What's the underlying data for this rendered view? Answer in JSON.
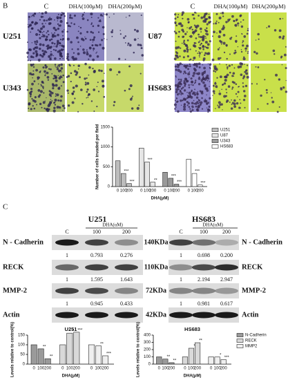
{
  "panel_b": {
    "label": "B",
    "columns_left": [
      "C",
      "DHA(100μM)",
      "DHA(200μM)"
    ],
    "columns_right": [
      "C",
      "DHA(100μM)",
      "DHA(200μM)"
    ],
    "rows_left": [
      "U251",
      "U343"
    ],
    "rows_right": [
      "U87",
      "HS683"
    ]
  },
  "panel_c": {
    "label": "C",
    "blots": [
      {
        "title": "U251",
        "treatment": "DHA(uM)",
        "lanes": [
          "C",
          "100",
          "200"
        ],
        "quant": [
          [
            "1",
            "0.793",
            "0.276"
          ],
          [
            "1",
            "1.595",
            "1.643"
          ],
          [
            "1",
            "0.945",
            "0.433"
          ]
        ]
      },
      {
        "title": "HS683",
        "treatment": "DHA(uM)",
        "lanes": [
          "C",
          "100",
          "200"
        ],
        "quant": [
          [
            "1",
            "0.698",
            "0.200"
          ],
          [
            "1",
            "2.194",
            "2.947"
          ],
          [
            "1",
            "0.981",
            "0.617"
          ]
        ]
      }
    ],
    "proteins_left": [
      "N - Cadherin",
      "RECK",
      "MMP-2",
      "Actin"
    ],
    "proteins_right": [
      "N - Cadherin",
      "RECK",
      "MMP-2",
      "Actin"
    ],
    "sizes": [
      "140KDa",
      "110KDa",
      "72KDa",
      "42KDa"
    ]
  },
  "chart_data": [
    {
      "type": "bar",
      "ylabel": "Number of cells invaded per field",
      "xlabel": "DHA(μM)",
      "categories": [
        "0",
        "100",
        "200"
      ],
      "ylim": [
        0,
        1500
      ],
      "yticks": [
        0,
        500,
        1000,
        1500
      ],
      "legend": "right",
      "series": [
        {
          "name": "U251",
          "color": "#bdbdbd",
          "values": [
            650,
            330,
            75
          ],
          "significance": [
            null,
            "***",
            "***"
          ]
        },
        {
          "name": "U87",
          "color": "#e6e6e6",
          "values": [
            970,
            620,
            110
          ],
          "significance": [
            null,
            "***",
            "**"
          ]
        },
        {
          "name": "U343",
          "color": "#9a9a9a",
          "values": [
            360,
            210,
            60
          ],
          "significance": [
            null,
            "***",
            "***"
          ]
        },
        {
          "name": "HS683",
          "color": "#ffffff",
          "values": [
            690,
            330,
            40
          ],
          "significance": [
            null,
            "***",
            "***"
          ]
        }
      ]
    },
    {
      "type": "bar",
      "title": "U251",
      "ylabel": "Levels relative to control(%)",
      "xlabel": "DHA(μM)",
      "categories": [
        "0",
        "100",
        "200"
      ],
      "ylim": [
        0,
        150
      ],
      "yticks": [
        0,
        50,
        100,
        150
      ],
      "legend": "none",
      "series": [
        {
          "name": "N-Cadherin",
          "color": "#9a9a9a",
          "values": [
            100,
            79,
            28
          ],
          "significance": [
            null,
            "**",
            "**"
          ]
        },
        {
          "name": "RECK",
          "color": "#d9d9d9",
          "values": [
            100,
            160,
            165
          ],
          "significance": [
            null,
            "*",
            "***"
          ]
        },
        {
          "name": "MMP2",
          "color": "#efefef",
          "values": [
            100,
            94,
            43
          ],
          "significance": [
            null,
            "**",
            "***"
          ]
        }
      ]
    },
    {
      "type": "bar",
      "title": "HS683",
      "ylabel": "Levels relative to control(%)",
      "xlabel": "DHA(μM)",
      "categories": [
        "0",
        "100",
        "200"
      ],
      "ylim": [
        0,
        400
      ],
      "yticks": [
        0,
        100,
        200,
        300,
        400
      ],
      "legend": "right",
      "series": [
        {
          "name": "N-Cadherin",
          "color": "#9a9a9a",
          "values": [
            100,
            70,
            20
          ],
          "significance": [
            null,
            "**",
            "**"
          ]
        },
        {
          "name": "RECK",
          "color": "#d9d9d9",
          "values": [
            100,
            219,
            295
          ],
          "significance": [
            null,
            "*",
            "**"
          ]
        },
        {
          "name": "MMP2",
          "color": "#efefef",
          "values": [
            100,
            98,
            62
          ],
          "significance": [
            null,
            "*",
            "***"
          ]
        }
      ]
    }
  ]
}
